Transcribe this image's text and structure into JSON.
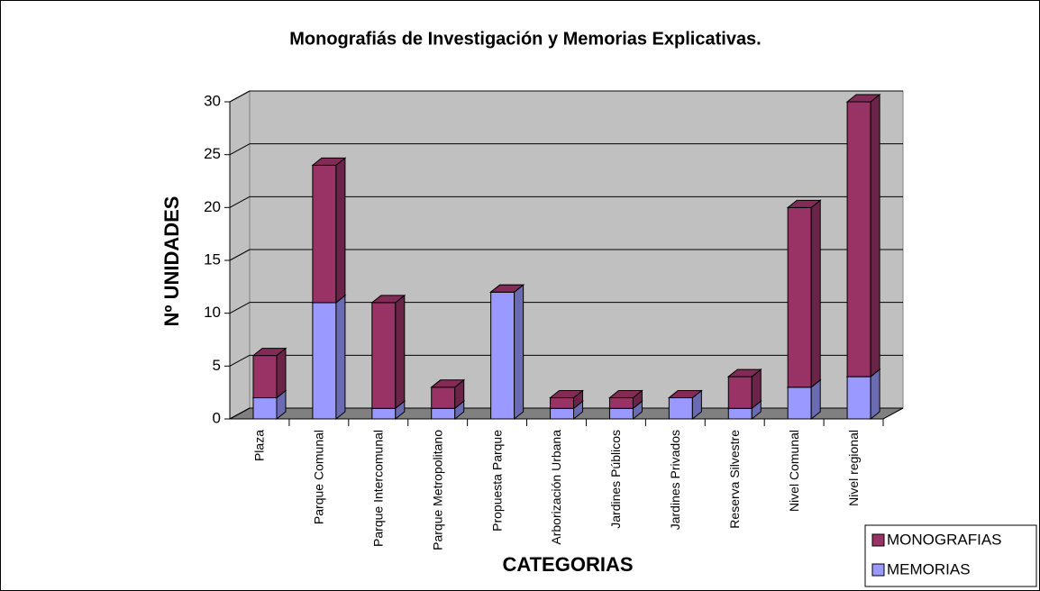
{
  "chart_data": {
    "type": "bar3d_stacked",
    "title": "Monografiás de Investigación y Memorias Explicativas.",
    "y_label": "Nº UNIDADES",
    "x_label": "CATEGORIAS",
    "categories": [
      "Plaza",
      "Parque Comunal",
      "Parque Intercomunal",
      "Parque Metropolitano",
      "Propuesta Parque",
      "Arborización Urbana",
      "Jardines Públicos",
      "Jardines Privados",
      "Reserva Silvestre",
      "Nivel Comunal",
      "Nivel regional"
    ],
    "series": [
      {
        "name": "MEMORIAS",
        "color": "#9999ff",
        "values": [
          2,
          11,
          1,
          1,
          12,
          1,
          1,
          2,
          1,
          3,
          4
        ]
      },
      {
        "name": "MONOGRAFIAS",
        "color": "#993366",
        "values": [
          4,
          13,
          10,
          2,
          0,
          1,
          1,
          0,
          3,
          17,
          26
        ]
      }
    ],
    "ylim": [
      0,
      30
    ],
    "yticks": [
      0,
      5,
      10,
      15,
      20,
      25,
      30
    ],
    "grid": true,
    "legend": "bottom-right"
  }
}
